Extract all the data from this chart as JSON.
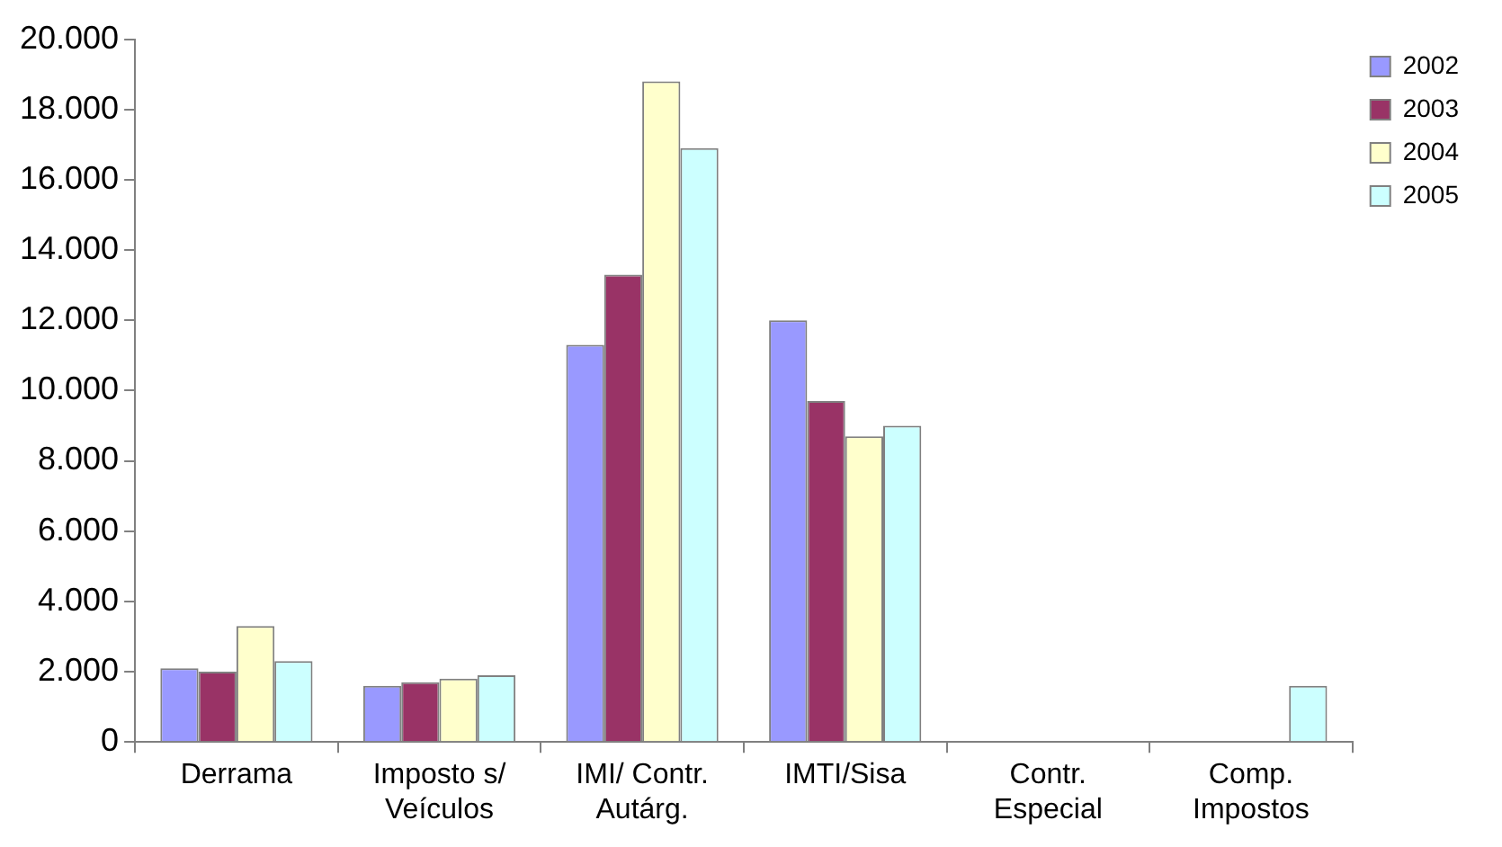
{
  "chart_data": {
    "type": "bar",
    "categories": [
      "Derrama",
      "Imposto s/ Veículos",
      "IMI/ Contr. Autárg.",
      "IMTI/Sisa",
      "Contr. Especial",
      "Comp. Impostos"
    ],
    "series": [
      {
        "name": "2002",
        "color": "#9999ff",
        "values": [
          2100,
          1600,
          11300,
          12000,
          null,
          null
        ]
      },
      {
        "name": "2003",
        "color": "#993366",
        "values": [
          2000,
          1700,
          13300,
          9700,
          null,
          null
        ]
      },
      {
        "name": "2004",
        "color": "#ffffcc",
        "values": [
          3300,
          1800,
          18800,
          8700,
          0,
          null
        ]
      },
      {
        "name": "2005",
        "color": "#ccffff",
        "values": [
          2300,
          1900,
          16900,
          9000,
          0,
          1600
        ]
      }
    ],
    "ylim": [
      0,
      20000
    ],
    "yticks": [
      {
        "value": 0,
        "label": "0"
      },
      {
        "value": 2000,
        "label": "2.000"
      },
      {
        "value": 4000,
        "label": "4.000"
      },
      {
        "value": 6000,
        "label": "6.000"
      },
      {
        "value": 8000,
        "label": "8.000"
      },
      {
        "value": 10000,
        "label": "10.000"
      },
      {
        "value": 12000,
        "label": "12.000"
      },
      {
        "value": 14000,
        "label": "14.000"
      },
      {
        "value": 16000,
        "label": "16.000"
      },
      {
        "value": 18000,
        "label": "18.000"
      },
      {
        "value": 20000,
        "label": "20.000"
      }
    ],
    "grid": false,
    "legend": "top right"
  }
}
